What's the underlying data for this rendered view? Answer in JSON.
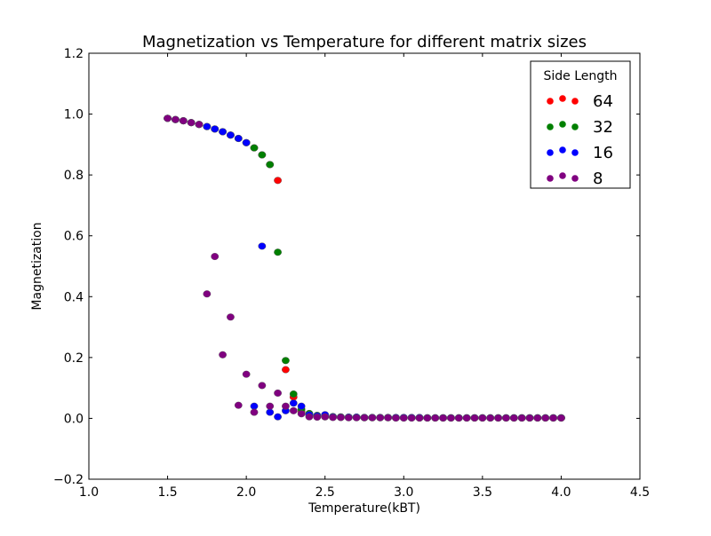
{
  "chart_data": {
    "type": "scatter",
    "title": "Magnetization vs Temperature for different matrix sizes",
    "xlabel": "Temperature(kBT)",
    "ylabel": "Magnetization",
    "xlim": [
      1.0,
      4.5
    ],
    "ylim": [
      -0.2,
      1.2
    ],
    "xticks": [
      1.0,
      1.5,
      2.0,
      2.5,
      3.0,
      3.5,
      4.0,
      4.5
    ],
    "yticks": [
      -0.2,
      0.0,
      0.2,
      0.4,
      0.6,
      0.8,
      1.0,
      1.2
    ],
    "xtick_labels": [
      "1.0",
      "1.5",
      "2.0",
      "2.5",
      "3.0",
      "3.5",
      "4.0",
      "4.5"
    ],
    "ytick_labels": [
      "−0.2",
      "0.0",
      "0.2",
      "0.4",
      "0.6",
      "0.8",
      "1.0",
      "1.2"
    ],
    "grid": false,
    "legend": {
      "title": "Side Length",
      "placement": "top-right"
    },
    "series": [
      {
        "name": "64",
        "color": "#ff0000",
        "x": [
          1.5,
          1.55,
          1.6,
          1.65,
          1.7,
          1.75,
          1.8,
          1.85,
          1.9,
          1.95,
          2.0,
          2.05,
          2.1,
          2.15,
          2.2,
          2.25,
          2.3,
          2.35,
          2.4,
          2.45,
          2.5,
          2.55,
          2.6,
          2.65,
          2.7,
          2.75,
          2.8,
          2.85,
          2.9,
          2.95,
          3.0,
          3.05,
          3.1,
          3.15,
          3.2,
          3.25,
          3.3,
          3.35,
          3.4,
          3.45,
          3.5,
          3.55,
          3.6,
          3.65,
          3.7,
          3.75,
          3.8,
          3.85,
          3.9,
          3.95,
          4.0
        ],
        "y": [
          0.986,
          0.982,
          0.978,
          0.972,
          0.966,
          0.959,
          0.951,
          0.942,
          0.931,
          0.92,
          0.906,
          0.889,
          0.866,
          0.834,
          0.782,
          0.16,
          0.07,
          0.022,
          0.01,
          0.006,
          0.005,
          0.004,
          0.003,
          0.003,
          0.003,
          0.002,
          0.002,
          0.002,
          0.002,
          0.002,
          0.002,
          0.002,
          0.001,
          0.001,
          0.001,
          0.001,
          0.001,
          0.001,
          0.001,
          0.001,
          0.001,
          0.001,
          0.001,
          0.001,
          0.001,
          0.001,
          0.001,
          0.001,
          0.001,
          0.001,
          0.001
        ]
      },
      {
        "name": "32",
        "color": "#008000",
        "x": [
          1.5,
          1.55,
          1.6,
          1.65,
          1.7,
          1.75,
          1.8,
          1.85,
          1.9,
          1.95,
          2.0,
          2.05,
          2.1,
          2.15,
          2.2,
          2.25,
          2.3,
          2.35,
          2.4,
          2.45,
          2.5,
          2.55,
          2.6,
          2.65,
          2.7,
          2.75,
          2.8,
          2.85,
          2.9,
          2.95,
          3.0,
          3.05,
          3.1,
          3.15,
          3.2,
          3.25,
          3.3,
          3.35,
          3.4,
          3.45,
          3.5,
          3.55,
          3.6,
          3.65,
          3.7,
          3.75,
          3.8,
          3.85,
          3.9,
          3.95,
          4.0
        ],
        "y": [
          0.986,
          0.982,
          0.978,
          0.972,
          0.966,
          0.959,
          0.951,
          0.942,
          0.931,
          0.92,
          0.906,
          0.889,
          0.866,
          0.834,
          0.546,
          0.19,
          0.08,
          0.03,
          0.016,
          0.01,
          0.008,
          0.006,
          0.005,
          0.004,
          0.004,
          0.003,
          0.003,
          0.003,
          0.003,
          0.002,
          0.002,
          0.002,
          0.002,
          0.002,
          0.002,
          0.002,
          0.002,
          0.002,
          0.002,
          0.002,
          0.002,
          0.002,
          0.002,
          0.002,
          0.002,
          0.002,
          0.002,
          0.002,
          0.002,
          0.002,
          0.002
        ]
      },
      {
        "name": "16",
        "color": "#0000ff",
        "x": [
          1.5,
          1.55,
          1.6,
          1.65,
          1.7,
          1.75,
          1.8,
          1.85,
          1.9,
          1.95,
          2.0,
          2.05,
          2.1,
          2.15,
          2.2,
          2.25,
          2.3,
          2.35,
          2.4,
          2.45,
          2.5,
          2.55,
          2.6,
          2.65,
          2.7,
          2.75,
          2.8,
          2.85,
          2.9,
          2.95,
          3.0,
          3.05,
          3.1,
          3.15,
          3.2,
          3.25,
          3.3,
          3.35,
          3.4,
          3.45,
          3.5,
          3.55,
          3.6,
          3.65,
          3.7,
          3.75,
          3.8,
          3.85,
          3.9,
          3.95,
          4.0
        ],
        "y": [
          0.986,
          0.982,
          0.978,
          0.972,
          0.966,
          0.959,
          0.951,
          0.942,
          0.931,
          0.92,
          0.906,
          0.04,
          0.566,
          0.02,
          0.005,
          0.025,
          0.05,
          0.04,
          0.012,
          0.008,
          0.012,
          0.005,
          0.004,
          0.004,
          0.004,
          0.003,
          0.003,
          0.003,
          0.003,
          0.003,
          0.003,
          0.003,
          0.003,
          0.002,
          0.002,
          0.002,
          0.002,
          0.002,
          0.002,
          0.002,
          0.002,
          0.002,
          0.002,
          0.002,
          0.002,
          0.002,
          0.002,
          0.002,
          0.002,
          0.002,
          0.002
        ]
      },
      {
        "name": "8",
        "color": "#800080",
        "x": [
          1.5,
          1.55,
          1.6,
          1.65,
          1.7,
          1.75,
          1.8,
          1.85,
          1.9,
          1.95,
          2.0,
          2.05,
          2.1,
          2.15,
          2.2,
          2.25,
          2.3,
          2.35,
          2.4,
          2.45,
          2.5,
          2.55,
          2.6,
          2.65,
          2.7,
          2.75,
          2.8,
          2.85,
          2.9,
          2.95,
          3.0,
          3.05,
          3.1,
          3.15,
          3.2,
          3.25,
          3.3,
          3.35,
          3.4,
          3.45,
          3.5,
          3.55,
          3.6,
          3.65,
          3.7,
          3.75,
          3.8,
          3.85,
          3.9,
          3.95,
          4.0
        ],
        "y": [
          0.986,
          0.982,
          0.978,
          0.972,
          0.966,
          0.409,
          0.532,
          0.209,
          0.333,
          0.043,
          0.145,
          0.02,
          0.108,
          0.04,
          0.083,
          0.04,
          0.025,
          0.015,
          0.005,
          0.004,
          0.005,
          0.003,
          0.003,
          0.002,
          0.002,
          0.002,
          0.002,
          0.002,
          0.002,
          0.001,
          0.001,
          0.001,
          0.001,
          0.001,
          0.001,
          0.001,
          0.001,
          0.001,
          0.001,
          0.001,
          0.001,
          0.001,
          0.001,
          0.001,
          0.001,
          0.001,
          0.001,
          0.001,
          0.001,
          0.001,
          0.001
        ]
      }
    ]
  }
}
